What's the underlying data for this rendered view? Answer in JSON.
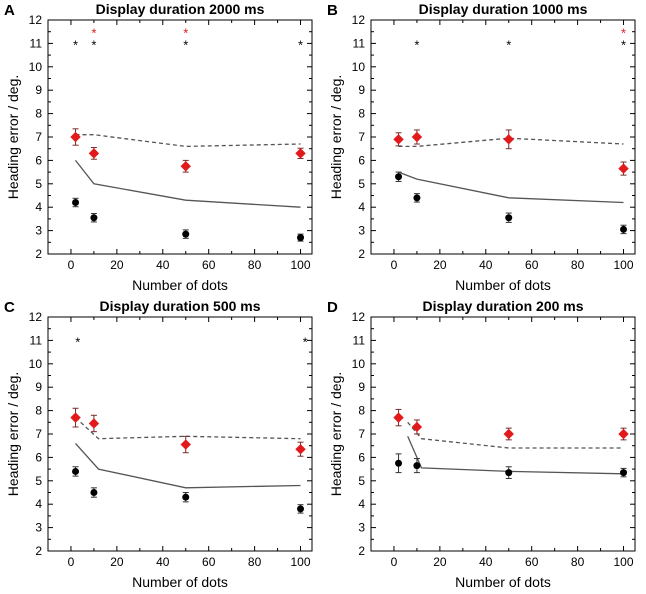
{
  "figure": {
    "panels_common": {
      "xlabel": "Number of dots",
      "ylabel": "Heading error / deg.",
      "xlim": [
        -10,
        105
      ],
      "ylim": [
        2,
        12
      ],
      "xticks": [
        0,
        20,
        40,
        60,
        80,
        100
      ],
      "yticks": [
        2,
        3,
        4,
        5,
        6,
        7,
        8,
        9,
        10,
        11,
        12
      ]
    }
  },
  "chart_data": [
    {
      "type": "scatter",
      "panel_label": "A",
      "title": "Display duration 2000 ms",
      "xlabel": "Number of dots",
      "ylabel": "Heading error / deg.",
      "xlim": [
        -10,
        105
      ],
      "ylim": [
        2,
        12
      ],
      "series": [
        {
          "name": "black-points",
          "kind": "points",
          "marker": "circle",
          "color": "#000000",
          "x": [
            2,
            10,
            50,
            100
          ],
          "y": [
            4.2,
            3.55,
            2.85,
            2.7
          ],
          "err": [
            0.18,
            0.18,
            0.18,
            0.15
          ]
        },
        {
          "name": "red-points",
          "kind": "points",
          "marker": "diamond",
          "color": "#e31a1c",
          "x": [
            2,
            10,
            50,
            100
          ],
          "y": [
            7.0,
            6.3,
            5.75,
            6.3
          ],
          "err": [
            0.35,
            0.25,
            0.25,
            0.22
          ]
        },
        {
          "name": "solid-line",
          "kind": "line",
          "dash": false,
          "color": "#555555",
          "x": [
            2,
            10,
            50,
            100
          ],
          "y": [
            6.0,
            5.0,
            4.3,
            4.0
          ]
        },
        {
          "name": "dashed-line",
          "kind": "line",
          "dash": true,
          "color": "#555555",
          "x": [
            2,
            10,
            50,
            100
          ],
          "y": [
            7.1,
            7.1,
            6.6,
            6.7
          ]
        }
      ],
      "annotations": [
        {
          "x": 2,
          "y": 11.0,
          "text": "*",
          "color": "#000000"
        },
        {
          "x": 10,
          "y": 11.0,
          "text": "*",
          "color": "#000000"
        },
        {
          "x": 10,
          "y": 11.5,
          "text": "*",
          "color": "#e31a1c"
        },
        {
          "x": 50,
          "y": 11.0,
          "text": "*",
          "color": "#000000"
        },
        {
          "x": 50,
          "y": 11.5,
          "text": "*",
          "color": "#e31a1c"
        },
        {
          "x": 100,
          "y": 11.0,
          "text": "*",
          "color": "#000000"
        }
      ]
    },
    {
      "type": "scatter",
      "panel_label": "B",
      "title": "Display duration 1000 ms",
      "xlabel": "Number of dots",
      "ylabel": "Heading error / deg.",
      "xlim": [
        -10,
        105
      ],
      "ylim": [
        2,
        12
      ],
      "series": [
        {
          "name": "black-points",
          "kind": "points",
          "marker": "circle",
          "color": "#000000",
          "x": [
            2,
            10,
            50,
            100
          ],
          "y": [
            5.3,
            4.4,
            3.55,
            3.05
          ],
          "err": [
            0.2,
            0.18,
            0.2,
            0.18
          ]
        },
        {
          "name": "red-points",
          "kind": "points",
          "marker": "diamond",
          "color": "#e31a1c",
          "x": [
            2,
            10,
            50,
            100
          ],
          "y": [
            6.9,
            7.0,
            6.9,
            5.65
          ],
          "err": [
            0.28,
            0.3,
            0.4,
            0.28
          ]
        },
        {
          "name": "solid-line",
          "kind": "line",
          "dash": false,
          "color": "#555555",
          "x": [
            2,
            10,
            50,
            100
          ],
          "y": [
            5.5,
            5.2,
            4.4,
            4.2
          ]
        },
        {
          "name": "dashed-line",
          "kind": "line",
          "dash": true,
          "color": "#555555",
          "x": [
            2,
            10,
            50,
            100
          ],
          "y": [
            6.6,
            6.6,
            6.95,
            6.7
          ]
        }
      ],
      "annotations": [
        {
          "x": 10,
          "y": 11.0,
          "text": "*",
          "color": "#000000"
        },
        {
          "x": 50,
          "y": 11.0,
          "text": "*",
          "color": "#000000"
        },
        {
          "x": 100,
          "y": 11.0,
          "text": "*",
          "color": "#000000"
        },
        {
          "x": 100,
          "y": 11.5,
          "text": "*",
          "color": "#e31a1c"
        }
      ]
    },
    {
      "type": "scatter",
      "panel_label": "C",
      "title": "Display duration 500 ms",
      "xlabel": "Number of dots",
      "ylabel": "Heading error / deg.",
      "xlim": [
        -10,
        105
      ],
      "ylim": [
        2,
        12
      ],
      "series": [
        {
          "name": "black-points",
          "kind": "points",
          "marker": "circle",
          "color": "#000000",
          "x": [
            2,
            10,
            50,
            100
          ],
          "y": [
            5.4,
            4.5,
            4.3,
            3.8
          ],
          "err": [
            0.2,
            0.2,
            0.2,
            0.18
          ]
        },
        {
          "name": "red-points",
          "kind": "points",
          "marker": "diamond",
          "color": "#e31a1c",
          "x": [
            2,
            10,
            50,
            100
          ],
          "y": [
            7.7,
            7.45,
            6.55,
            6.35
          ],
          "err": [
            0.4,
            0.35,
            0.35,
            0.3
          ]
        },
        {
          "name": "solid-line",
          "kind": "line",
          "dash": false,
          "color": "#555555",
          "x": [
            2,
            12,
            50,
            100
          ],
          "y": [
            6.6,
            5.5,
            4.7,
            4.8
          ]
        },
        {
          "name": "dashed-line",
          "kind": "line",
          "dash": true,
          "color": "#555555",
          "x": [
            2,
            12,
            50,
            100
          ],
          "y": [
            7.7,
            6.8,
            6.9,
            6.8
          ]
        }
      ],
      "annotations": [
        {
          "x": 3,
          "y": 11.0,
          "text": "*",
          "color": "#000000"
        },
        {
          "x": 102,
          "y": 11.0,
          "text": "*",
          "color": "#000000"
        }
      ]
    },
    {
      "type": "scatter",
      "panel_label": "D",
      "title": "Display duration 200 ms",
      "xlabel": "Number of dots",
      "ylabel": "Heading error / deg.",
      "xlim": [
        -10,
        105
      ],
      "ylim": [
        2,
        12
      ],
      "series": [
        {
          "name": "black-points",
          "kind": "points",
          "marker": "circle",
          "color": "#000000",
          "x": [
            2,
            10,
            50,
            100
          ],
          "y": [
            5.75,
            5.65,
            5.35,
            5.35
          ],
          "err": [
            0.4,
            0.3,
            0.25,
            0.18
          ]
        },
        {
          "name": "red-points",
          "kind": "points",
          "marker": "diamond",
          "color": "#e31a1c",
          "x": [
            2,
            10,
            50,
            100
          ],
          "y": [
            7.7,
            7.3,
            7.0,
            7.0
          ],
          "err": [
            0.35,
            0.3,
            0.25,
            0.25
          ]
        },
        {
          "name": "solid-line",
          "kind": "line",
          "dash": false,
          "color": "#555555",
          "x": [
            6,
            12,
            50,
            100
          ],
          "y": [
            6.9,
            5.55,
            5.4,
            5.3
          ]
        },
        {
          "name": "dashed-line",
          "kind": "line",
          "dash": true,
          "color": "#555555",
          "x": [
            6,
            12,
            50,
            100
          ],
          "y": [
            7.5,
            6.8,
            6.4,
            6.4
          ]
        }
      ],
      "annotations": []
    }
  ]
}
